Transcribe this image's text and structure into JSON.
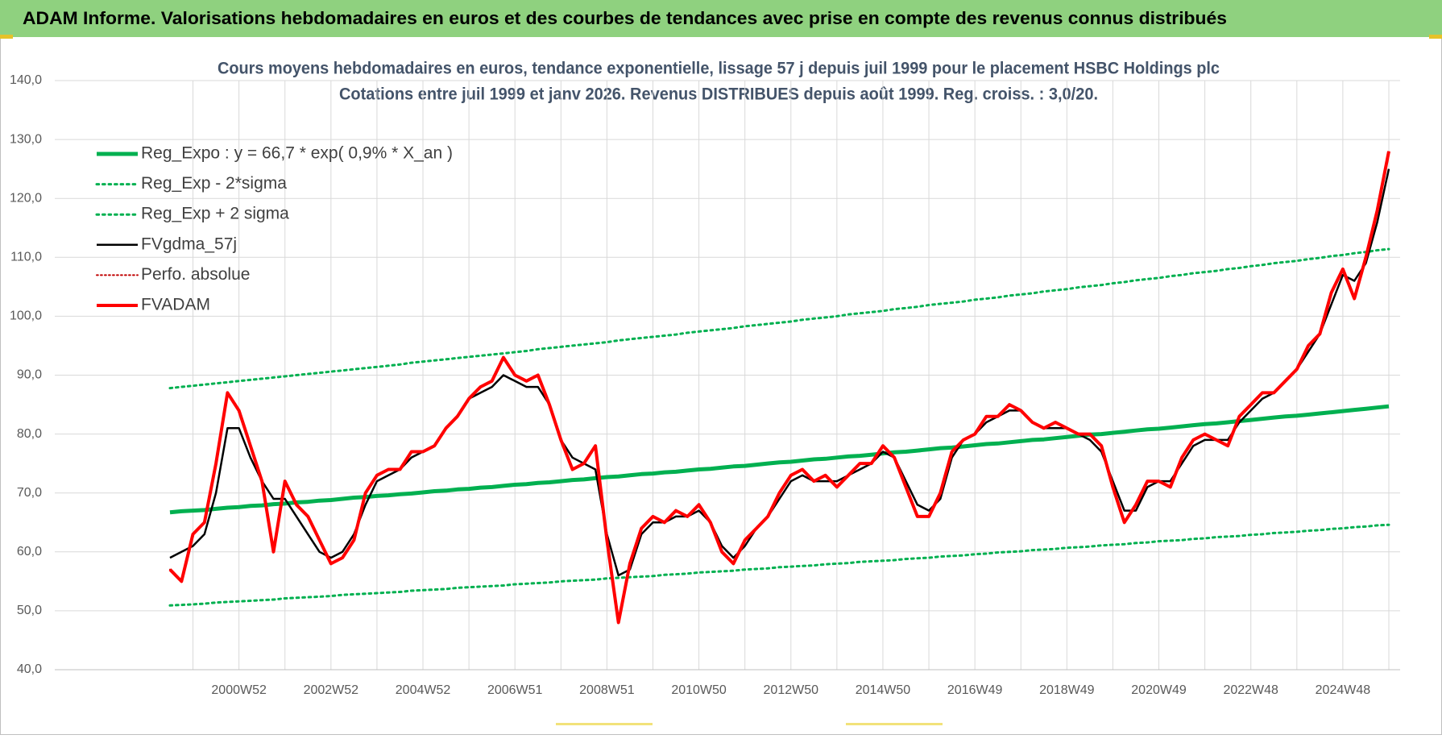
{
  "chart_data": {
    "type": "line",
    "header": "ADAM Informe. Valorisations hebdomadaires en euros et des courbes de tendances avec prise en compte des revenus connus distribués",
    "title": "Cours moyens hebdomadaires en euros, tendance exponentielle, lissage 57 j depuis juil 1999 pour le placement HSBC Holdings plc",
    "subtitle": "Cotations entre juil 1999 et janv 2026. Revenus DISTRIBUES depuis août 1999. Reg. croiss. : 3,0/20.",
    "categories": [
      null,
      null,
      null,
      null,
      null,
      null,
      "2000W52",
      null,
      null,
      null,
      null,
      null,
      null,
      null,
      "2002W52",
      null,
      null,
      null,
      null,
      null,
      null,
      null,
      "2004W52",
      null,
      null,
      null,
      null,
      null,
      null,
      null,
      "2006W51",
      null,
      null,
      null,
      null,
      null,
      null,
      null,
      "2008W51",
      null,
      null,
      null,
      null,
      null,
      null,
      null,
      "2010W50",
      null,
      null,
      null,
      null,
      null,
      null,
      null,
      "2012W50",
      null,
      null,
      null,
      null,
      null,
      null,
      null,
      "2014W50",
      null,
      null,
      null,
      null,
      null,
      null,
      null,
      "2016W49",
      null,
      null,
      null,
      null,
      null,
      null,
      null,
      "2018W49",
      null,
      null,
      null,
      null,
      null,
      null,
      null,
      "2020W49",
      null,
      null,
      null,
      null,
      null,
      null,
      null,
      "2022W48",
      null,
      null,
      null,
      null,
      null,
      null,
      null,
      "2024W48",
      null,
      null,
      null,
      null
    ],
    "ylim": [
      40,
      140
    ],
    "yticks": [
      {
        "value": 40,
        "label": "40,0"
      },
      {
        "value": 50,
        "label": "50,0"
      },
      {
        "value": 60,
        "label": "60,0"
      },
      {
        "value": 70,
        "label": "70,0"
      },
      {
        "value": 80,
        "label": "80,0"
      },
      {
        "value": 90,
        "label": "90,0"
      },
      {
        "value": 100,
        "label": "100,0"
      },
      {
        "value": 110,
        "label": "110,0"
      },
      {
        "value": 120,
        "label": "120,0"
      },
      {
        "value": 130,
        "label": "130,0"
      },
      {
        "value": 140,
        "label": "140,0"
      }
    ],
    "grid": true,
    "legend": "upper left",
    "series": [
      {
        "name": "Reg_Expo : y = 66,7 * exp( 0,9% *  X_an )",
        "color": "#00b050",
        "style": "solid",
        "width": 5,
        "values": [
          66.7,
          66.9,
          67.0,
          67.1,
          67.3,
          67.5,
          67.6,
          67.8,
          67.9,
          68.1,
          68.2,
          68.4,
          68.5,
          68.7,
          68.8,
          69.0,
          69.2,
          69.3,
          69.5,
          69.6,
          69.8,
          69.9,
          70.1,
          70.3,
          70.4,
          70.6,
          70.7,
          70.9,
          71.0,
          71.2,
          71.4,
          71.5,
          71.7,
          71.8,
          72.0,
          72.2,
          72.3,
          72.5,
          72.7,
          72.8,
          73.0,
          73.2,
          73.3,
          73.5,
          73.6,
          73.8,
          74.0,
          74.1,
          74.3,
          74.5,
          74.6,
          74.8,
          75.0,
          75.2,
          75.3,
          75.5,
          75.7,
          75.8,
          76.0,
          76.2,
          76.3,
          76.5,
          76.7,
          76.9,
          77.0,
          77.2,
          77.4,
          77.6,
          77.7,
          77.9,
          78.1,
          78.3,
          78.4,
          78.6,
          78.8,
          79.0,
          79.1,
          79.3,
          79.5,
          79.7,
          79.9,
          80.0,
          80.2,
          80.4,
          80.6,
          80.8,
          80.9,
          81.1,
          81.3,
          81.5,
          81.7,
          81.8,
          82.0,
          82.2,
          82.4,
          82.6,
          82.8,
          83.0,
          83.1,
          83.3,
          83.5,
          83.7,
          83.9,
          84.1,
          84.3,
          84.5,
          84.7
        ]
      },
      {
        "name": "Reg_Exp - 2*sigma",
        "color": "#00b050",
        "style": "dotted",
        "width": 3,
        "values": [
          50.9,
          51.0,
          51.1,
          51.2,
          51.4,
          51.5,
          51.6,
          51.7,
          51.8,
          51.9,
          52.1,
          52.2,
          52.3,
          52.4,
          52.5,
          52.7,
          52.8,
          52.9,
          53.0,
          53.1,
          53.2,
          53.4,
          53.5,
          53.6,
          53.7,
          53.9,
          54.0,
          54.1,
          54.2,
          54.3,
          54.5,
          54.6,
          54.7,
          54.8,
          55.0,
          55.1,
          55.2,
          55.3,
          55.5,
          55.6,
          55.7,
          55.8,
          55.9,
          56.1,
          56.2,
          56.3,
          56.5,
          56.6,
          56.7,
          56.8,
          57.0,
          57.1,
          57.2,
          57.4,
          57.5,
          57.6,
          57.7,
          57.9,
          58.0,
          58.1,
          58.3,
          58.4,
          58.5,
          58.6,
          58.8,
          58.9,
          59.0,
          59.2,
          59.3,
          59.4,
          59.6,
          59.7,
          59.9,
          60.0,
          60.1,
          60.3,
          60.4,
          60.5,
          60.7,
          60.8,
          60.9,
          61.1,
          61.2,
          61.3,
          61.5,
          61.6,
          61.8,
          61.9,
          62.0,
          62.2,
          62.3,
          62.5,
          62.6,
          62.7,
          62.9,
          63.0,
          63.2,
          63.3,
          63.4,
          63.6,
          63.7,
          63.9,
          64.0,
          64.2,
          64.3,
          64.5,
          64.6
        ]
      },
      {
        "name": "Reg_Exp + 2 sigma",
        "color": "#00b050",
        "style": "dotted",
        "width": 3,
        "values": [
          87.8,
          88.0,
          88.2,
          88.4,
          88.6,
          88.8,
          89.0,
          89.2,
          89.4,
          89.6,
          89.8,
          90.0,
          90.2,
          90.4,
          90.6,
          90.8,
          91.0,
          91.2,
          91.4,
          91.6,
          91.8,
          92.1,
          92.3,
          92.5,
          92.7,
          92.9,
          93.1,
          93.3,
          93.5,
          93.7,
          93.9,
          94.1,
          94.4,
          94.6,
          94.8,
          95.0,
          95.2,
          95.4,
          95.6,
          95.9,
          96.1,
          96.3,
          96.5,
          96.7,
          96.9,
          97.2,
          97.4,
          97.6,
          97.8,
          98.0,
          98.3,
          98.5,
          98.7,
          98.9,
          99.1,
          99.4,
          99.6,
          99.8,
          100.0,
          100.3,
          100.5,
          100.7,
          100.9,
          101.2,
          101.4,
          101.6,
          101.9,
          102.1,
          102.3,
          102.5,
          102.8,
          103.0,
          103.2,
          103.5,
          103.7,
          103.9,
          104.2,
          104.4,
          104.6,
          104.9,
          105.1,
          105.3,
          105.6,
          105.8,
          106.1,
          106.3,
          106.5,
          106.8,
          107.0,
          107.3,
          107.5,
          107.7,
          108.0,
          108.2,
          108.5,
          108.7,
          109.0,
          109.2,
          109.4,
          109.7,
          109.9,
          110.2,
          110.4,
          110.7,
          110.9,
          111.2,
          111.4
        ]
      },
      {
        "name": "FVgdma_57j",
        "color": "#000000",
        "style": "solid",
        "width": 2.5,
        "values": [
          59,
          60,
          61,
          63,
          70,
          81,
          81,
          76,
          72,
          69,
          69,
          66,
          63,
          60,
          59,
          60,
          63,
          68,
          72,
          73,
          74,
          76,
          77,
          78,
          81,
          83,
          86,
          87,
          88,
          90,
          89,
          88,
          88,
          85,
          79,
          76,
          75,
          74,
          63,
          56,
          57,
          63,
          65,
          65,
          66,
          66,
          67,
          65,
          61,
          59,
          61,
          64,
          66,
          69,
          72,
          73,
          72,
          72,
          72,
          73,
          74,
          75,
          77,
          76,
          72,
          68,
          67,
          69,
          76,
          79,
          80,
          82,
          83,
          84,
          84,
          82,
          81,
          81,
          81,
          80,
          79,
          77,
          72,
          67,
          67,
          71,
          72,
          72,
          75,
          78,
          79,
          79,
          79,
          82,
          84,
          86,
          87,
          89,
          91,
          94,
          97,
          102,
          107,
          106,
          109,
          116,
          125
        ]
      },
      {
        "name": "Perfo. absolue",
        "color": "#c00000",
        "style": "dotted",
        "width": 2,
        "values": [
          57,
          55,
          63,
          65,
          75,
          87,
          84,
          78,
          72,
          60,
          72,
          68,
          66,
          62,
          58,
          59,
          62,
          70,
          73,
          74,
          74,
          77,
          77,
          78,
          81,
          83,
          86,
          88,
          89,
          93,
          90,
          89,
          90,
          85,
          79,
          74,
          75,
          78,
          62,
          48,
          58,
          64,
          66,
          65,
          67,
          66,
          68,
          65,
          60,
          58,
          62,
          64,
          66,
          70,
          73,
          74,
          72,
          73,
          71,
          73,
          75,
          75,
          78,
          76,
          71,
          66,
          66,
          70,
          77,
          79,
          80,
          83,
          83,
          85,
          84,
          82,
          81,
          82,
          81,
          80,
          80,
          78,
          71,
          65,
          68,
          72,
          72,
          71,
          76,
          79,
          80,
          79,
          78,
          83,
          85,
          87,
          87,
          89,
          91,
          95,
          97,
          104,
          108,
          103,
          110,
          118,
          128
        ]
      },
      {
        "name": "FVADAM",
        "color": "#ff0000",
        "style": "solid",
        "width": 4,
        "values": [
          57,
          55,
          63,
          65,
          75,
          87,
          84,
          78,
          72,
          60,
          72,
          68,
          66,
          62,
          58,
          59,
          62,
          70,
          73,
          74,
          74,
          77,
          77,
          78,
          81,
          83,
          86,
          88,
          89,
          93,
          90,
          89,
          90,
          85,
          79,
          74,
          75,
          78,
          62,
          48,
          58,
          64,
          66,
          65,
          67,
          66,
          68,
          65,
          60,
          58,
          62,
          64,
          66,
          70,
          73,
          74,
          72,
          73,
          71,
          73,
          75,
          75,
          78,
          76,
          71,
          66,
          66,
          70,
          77,
          79,
          80,
          83,
          83,
          85,
          84,
          82,
          81,
          82,
          81,
          80,
          80,
          78,
          71,
          65,
          68,
          72,
          72,
          71,
          76,
          79,
          80,
          79,
          78,
          83,
          85,
          87,
          87,
          89,
          91,
          95,
          97,
          104,
          108,
          103,
          110,
          118,
          128
        ]
      }
    ]
  }
}
